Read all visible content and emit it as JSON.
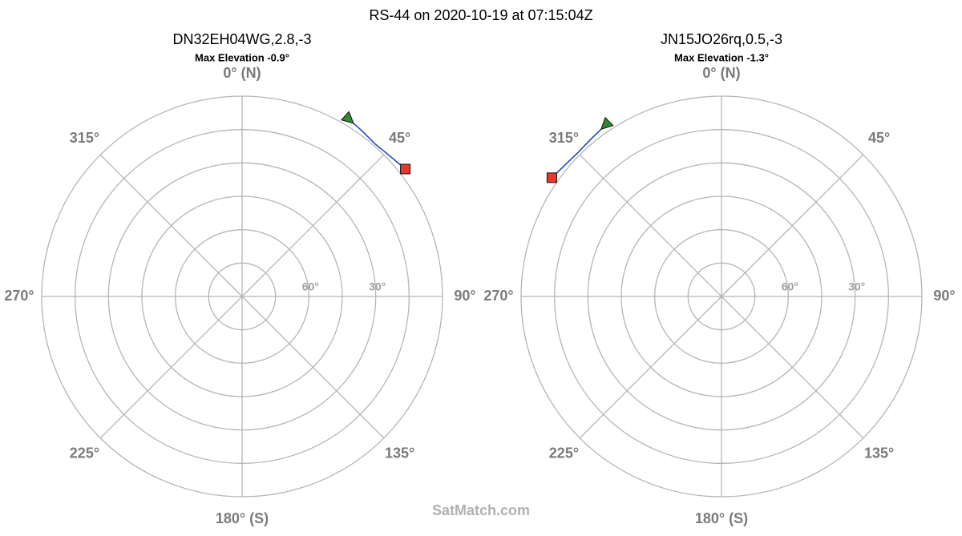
{
  "title": "RS-44 on 2020-10-19 at 07:15:04Z",
  "watermark": "SatMatch.com",
  "chart_data": [
    {
      "type": "polar",
      "title": "DN32EH04WG,2.8,-3",
      "subtitle": "Max Elevation -0.9°",
      "rlim": [
        90,
        0
      ],
      "rgrid": [
        0,
        15,
        30,
        45,
        60,
        75
      ],
      "rticks": [
        {
          "value": 30,
          "label": "30°"
        },
        {
          "value": 60,
          "label": "60°"
        }
      ],
      "thetaticks": [
        {
          "value": 0,
          "label": "0° (N)"
        },
        {
          "value": 45,
          "label": "45°"
        },
        {
          "value": 90,
          "label": "90°"
        },
        {
          "value": 135,
          "label": "135°"
        },
        {
          "value": 180,
          "label": "180° (S)"
        },
        {
          "value": 225,
          "label": "225°"
        },
        {
          "value": 270,
          "label": "270°"
        },
        {
          "value": 315,
          "label": "315°"
        }
      ],
      "track": {
        "color": "#1f3fbf",
        "azimuth": [
          31,
          36,
          41,
          46,
          52
        ],
        "elevation": [
          -3,
          -1.8,
          -0.9,
          -1.5,
          -3
        ]
      },
      "start_color": "#2e8b2e",
      "end_color": "#e8382c"
    },
    {
      "type": "polar",
      "title": "JN15JO26rq,0.5,-3",
      "subtitle": "Max Elevation -1.3°",
      "rlim": [
        90,
        0
      ],
      "rgrid": [
        0,
        15,
        30,
        45,
        60,
        75
      ],
      "rticks": [
        {
          "value": 30,
          "label": "30°"
        },
        {
          "value": 60,
          "label": "60°"
        }
      ],
      "thetaticks": [
        {
          "value": 0,
          "label": "0° (N)"
        },
        {
          "value": 45,
          "label": "45°"
        },
        {
          "value": 90,
          "label": "90°"
        },
        {
          "value": 135,
          "label": "135°"
        },
        {
          "value": 180,
          "label": "180° (S)"
        },
        {
          "value": 225,
          "label": "225°"
        },
        {
          "value": 270,
          "label": "270°"
        },
        {
          "value": 315,
          "label": "315°"
        }
      ],
      "track": {
        "color": "#1f3fbf",
        "azimuth": [
          326,
          320,
          315,
          310,
          305
        ],
        "elevation": [
          -3,
          -1.8,
          -1.3,
          -1.8,
          -3
        ]
      },
      "start_color": "#2e8b2e",
      "end_color": "#e8382c"
    }
  ]
}
